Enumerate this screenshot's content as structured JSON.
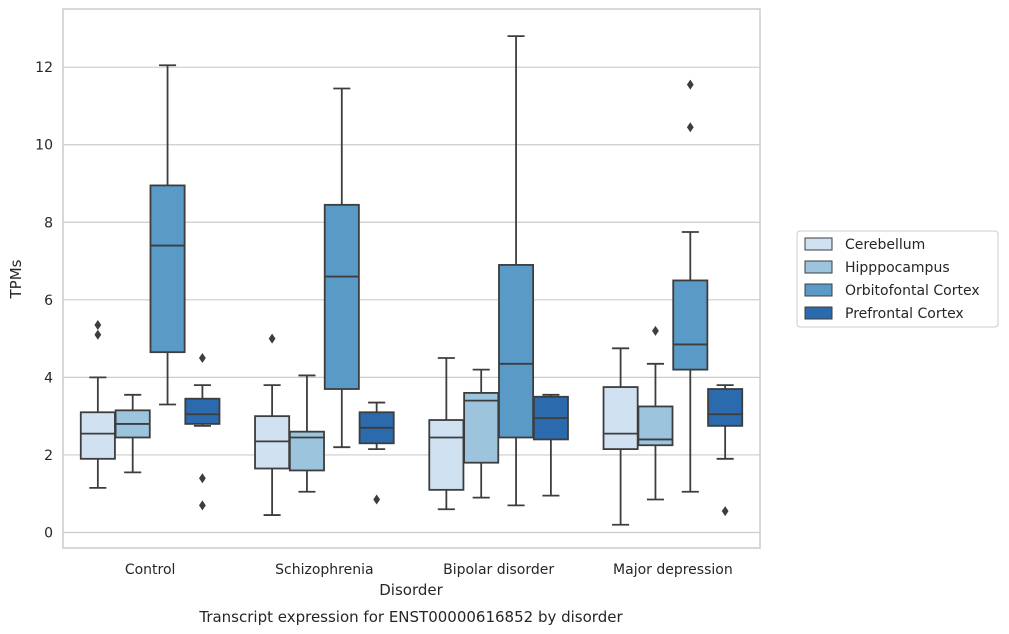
{
  "chart_data": {
    "type": "box",
    "title": "",
    "caption": "Transcript expression for ENST00000616852 by disorder",
    "xlabel": "Disorder",
    "ylabel": "TPMs",
    "ylim": [
      -0.4,
      13.5
    ],
    "yticks": [
      0,
      2,
      4,
      6,
      8,
      10,
      12
    ],
    "grid": true,
    "legend_position": "right",
    "categories": [
      "Control",
      "Schizophrenia",
      "Bipolar disorder",
      "Major depression"
    ],
    "series": [
      {
        "name": "Cerebellum",
        "color": "#d0e1f1",
        "boxes": [
          {
            "whisker_low": 1.15,
            "q1": 1.9,
            "median": 2.55,
            "q3": 3.1,
            "whisker_high": 4.0,
            "outliers": [
              5.1,
              5.35
            ]
          },
          {
            "whisker_low": 0.45,
            "q1": 1.65,
            "median": 2.35,
            "q3": 3.0,
            "whisker_high": 3.8,
            "outliers": [
              5.0
            ]
          },
          {
            "whisker_low": 0.6,
            "q1": 1.1,
            "median": 2.45,
            "q3": 2.9,
            "whisker_high": 4.5,
            "outliers": []
          },
          {
            "whisker_low": 0.2,
            "q1": 2.15,
            "median": 2.55,
            "q3": 3.75,
            "whisker_high": 4.75,
            "outliers": []
          }
        ]
      },
      {
        "name": "Hipppocampus",
        "color": "#9cc4dd",
        "boxes": [
          {
            "whisker_low": 1.55,
            "q1": 2.45,
            "median": 2.8,
            "q3": 3.15,
            "whisker_high": 3.55,
            "outliers": []
          },
          {
            "whisker_low": 1.05,
            "q1": 1.6,
            "median": 2.45,
            "q3": 2.6,
            "whisker_high": 4.05,
            "outliers": []
          },
          {
            "whisker_low": 0.9,
            "q1": 1.8,
            "median": 3.4,
            "q3": 3.6,
            "whisker_high": 4.2,
            "outliers": []
          },
          {
            "whisker_low": 0.85,
            "q1": 2.25,
            "median": 2.4,
            "q3": 3.25,
            "whisker_high": 4.35,
            "outliers": [
              5.2
            ]
          }
        ]
      },
      {
        "name": "Orbitofontal Cortex",
        "color": "#5a9ac7",
        "boxes": [
          {
            "whisker_low": 3.3,
            "q1": 4.65,
            "median": 7.4,
            "q3": 8.95,
            "whisker_high": 12.05,
            "outliers": []
          },
          {
            "whisker_low": 2.2,
            "q1": 3.7,
            "median": 6.6,
            "q3": 8.45,
            "whisker_high": 11.45,
            "outliers": []
          },
          {
            "whisker_low": 0.7,
            "q1": 2.45,
            "median": 4.35,
            "q3": 6.9,
            "whisker_high": 12.8,
            "outliers": []
          },
          {
            "whisker_low": 1.05,
            "q1": 4.2,
            "median": 4.85,
            "q3": 6.5,
            "whisker_high": 7.75,
            "outliers": [
              10.45,
              11.55
            ]
          }
        ]
      },
      {
        "name": "Prefrontal Cortex",
        "color": "#2b6aad",
        "boxes": [
          {
            "whisker_low": 2.75,
            "q1": 2.8,
            "median": 3.05,
            "q3": 3.45,
            "whisker_high": 3.8,
            "outliers": [
              0.7,
              1.4,
              4.5
            ]
          },
          {
            "whisker_low": 2.15,
            "q1": 2.3,
            "median": 2.7,
            "q3": 3.1,
            "whisker_high": 3.35,
            "outliers": [
              0.85
            ]
          },
          {
            "whisker_low": 0.95,
            "q1": 2.4,
            "median": 2.95,
            "q3": 3.5,
            "whisker_high": 3.55,
            "outliers": []
          },
          {
            "whisker_low": 1.9,
            "q1": 2.75,
            "median": 3.05,
            "q3": 3.7,
            "whisker_high": 3.8,
            "outliers": [
              0.55
            ]
          }
        ]
      }
    ]
  }
}
